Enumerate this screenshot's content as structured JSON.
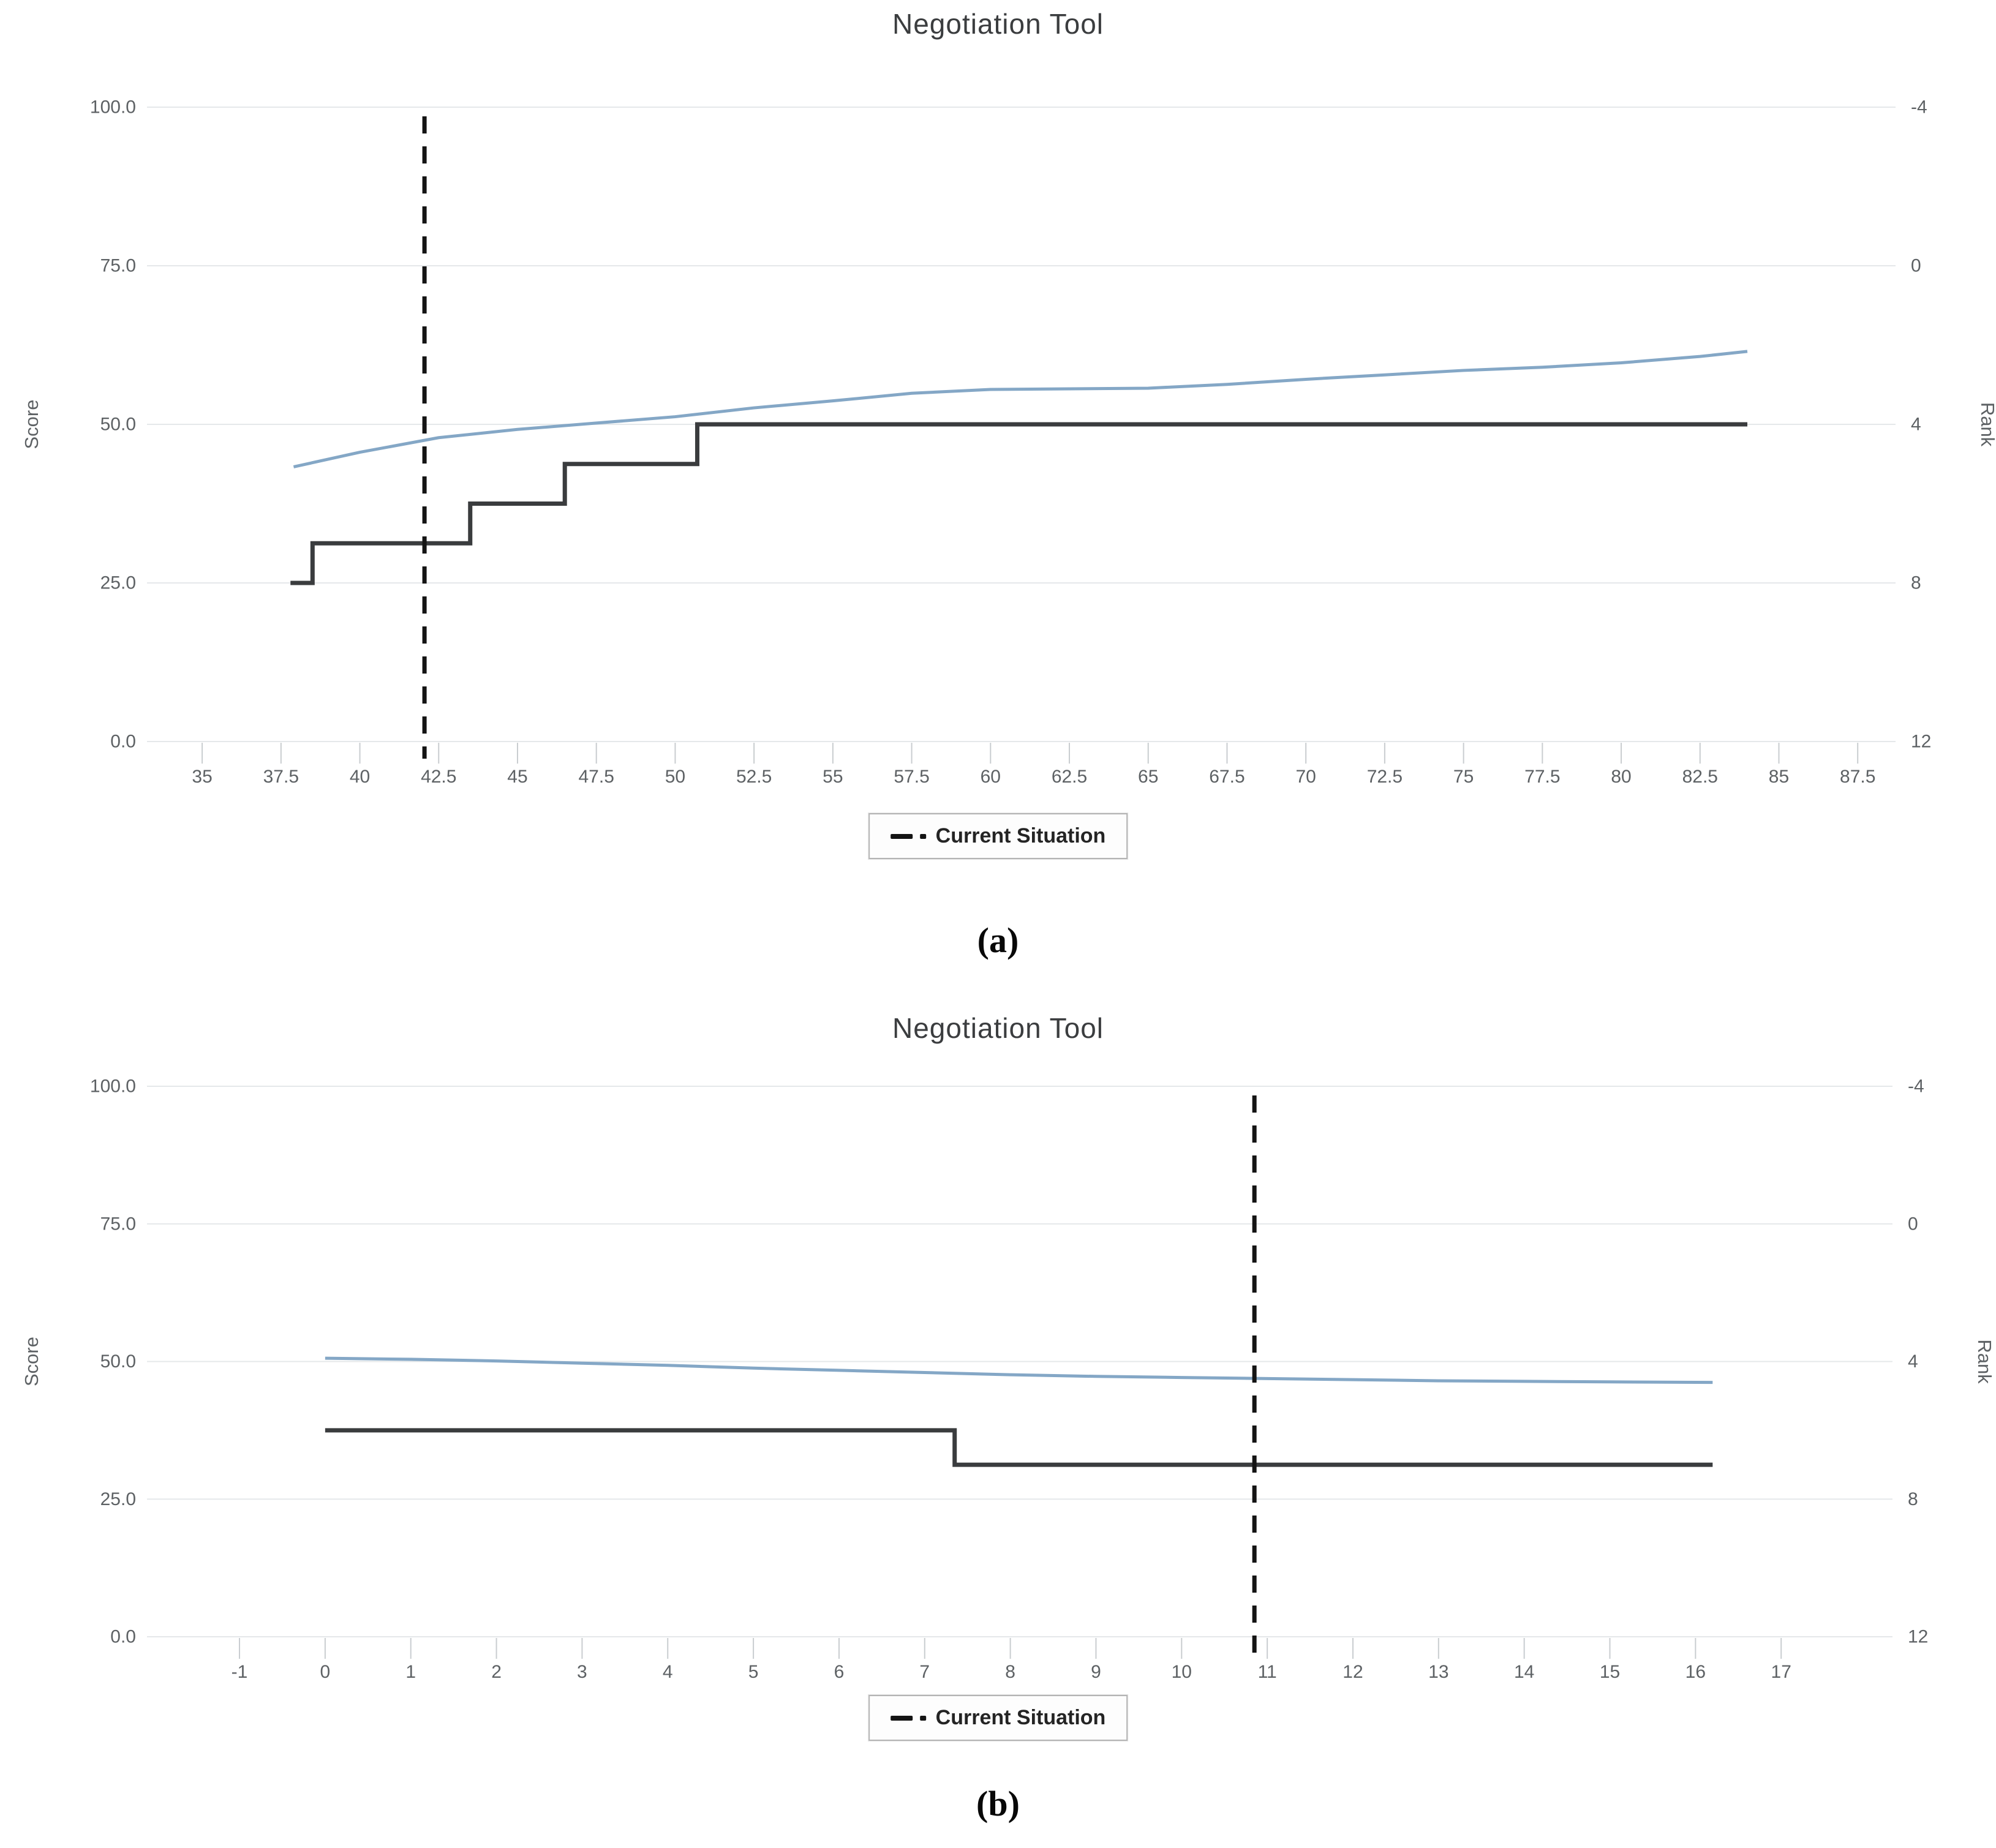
{
  "page": {
    "captions": {
      "a": "(a)",
      "b": "(b)"
    }
  },
  "legend": {
    "label": "Current Situation"
  },
  "chart_data": [
    {
      "type": "line",
      "title": "Negotiation Tool",
      "ylabel_left": "Score",
      "ylabel_right": "Rank",
      "ylim_left": [
        0,
        100
      ],
      "yticks_left": [
        "100.0",
        "75.0",
        "50.0",
        "25.0",
        "0.0"
      ],
      "yticks_right": [
        "-4",
        "0",
        "4",
        "8",
        "12"
      ],
      "ylim_right_top_to_bottom": [
        -4,
        12
      ],
      "xlim": [
        33.25,
        88.7
      ],
      "xticks": [
        "35",
        "37.5",
        "40",
        "42.5",
        "45",
        "47.5",
        "50",
        "52.5",
        "55",
        "57.5",
        "60",
        "62.5",
        "65",
        "67.5",
        "70",
        "72.5",
        "75",
        "77.5",
        "80",
        "82.5",
        "85",
        "87.5"
      ],
      "grid": true,
      "legend_position": "bottom-center",
      "legend": {
        "label": "Current Situation"
      },
      "series": [
        {
          "name": "score-curve",
          "axis": "left",
          "color": "#84a7c6",
          "width": 5,
          "step": false,
          "points": [
            [
              37.9,
              43.3
            ],
            [
              40,
              45.6
            ],
            [
              42.5,
              47.9
            ],
            [
              45,
              49.2
            ],
            [
              47.5,
              50.2
            ],
            [
              50,
              51.2
            ],
            [
              52.5,
              52.6
            ],
            [
              55,
              53.7
            ],
            [
              57.5,
              54.9
            ],
            [
              60,
              55.5
            ],
            [
              62.5,
              55.6
            ],
            [
              65,
              55.7
            ],
            [
              67.5,
              56.3
            ],
            [
              70,
              57.1
            ],
            [
              72.5,
              57.8
            ],
            [
              75,
              58.5
            ],
            [
              77.5,
              59.0
            ],
            [
              80,
              59.7
            ],
            [
              82.5,
              60.7
            ],
            [
              84,
              61.5
            ]
          ]
        },
        {
          "name": "rank-steps",
          "axis": "right",
          "color": "#3a3c3e",
          "width": 7,
          "step": true,
          "points": [
            [
              37.8,
              8
            ],
            [
              38.5,
              7
            ],
            [
              43.5,
              6
            ],
            [
              46.5,
              5
            ],
            [
              50.7,
              4
            ],
            [
              84,
              4
            ]
          ]
        }
      ],
      "vline": {
        "x": 42.05,
        "label": "Current Situation",
        "color": "#141414",
        "style": "dashed"
      }
    },
    {
      "type": "line",
      "title": "Negotiation Tool",
      "ylabel_left": "Score",
      "ylabel_right": "Rank",
      "ylim_left": [
        0,
        100
      ],
      "yticks_left": [
        "100.0",
        "75.0",
        "50.0",
        "25.0",
        "0.0"
      ],
      "yticks_right": [
        "-4",
        "0",
        "4",
        "8",
        "12"
      ],
      "ylim_right_top_to_bottom": [
        -4,
        12
      ],
      "xlim": [
        -2.08,
        18.3
      ],
      "xticks": [
        "-1",
        "0",
        "1",
        "2",
        "3",
        "4",
        "5",
        "6",
        "7",
        "8",
        "9",
        "10",
        "11",
        "12",
        "13",
        "14",
        "15",
        "16",
        "17"
      ],
      "grid": true,
      "legend_position": "bottom-center",
      "legend": {
        "label": "Current Situation"
      },
      "series": [
        {
          "name": "score-curve",
          "axis": "left",
          "color": "#84a7c6",
          "width": 5,
          "step": false,
          "points": [
            [
              0,
              50.6
            ],
            [
              1,
              50.4
            ],
            [
              2,
              50.1
            ],
            [
              3,
              49.7
            ],
            [
              4,
              49.3
            ],
            [
              5,
              48.8
            ],
            [
              6,
              48.4
            ],
            [
              7,
              48.0
            ],
            [
              8,
              47.6
            ],
            [
              9,
              47.3
            ],
            [
              10,
              47.1
            ],
            [
              11,
              46.9
            ],
            [
              12,
              46.7
            ],
            [
              13,
              46.5
            ],
            [
              14,
              46.4
            ],
            [
              15,
              46.3
            ],
            [
              16.2,
              46.2
            ]
          ]
        },
        {
          "name": "rank-steps",
          "axis": "right",
          "color": "#3a3c3e",
          "width": 7,
          "step": true,
          "points": [
            [
              0,
              6
            ],
            [
              7.35,
              7
            ],
            [
              16.2,
              7
            ]
          ]
        }
      ],
      "vline": {
        "x": 10.85,
        "label": "Current Situation",
        "color": "#141414",
        "style": "dashed"
      }
    }
  ]
}
